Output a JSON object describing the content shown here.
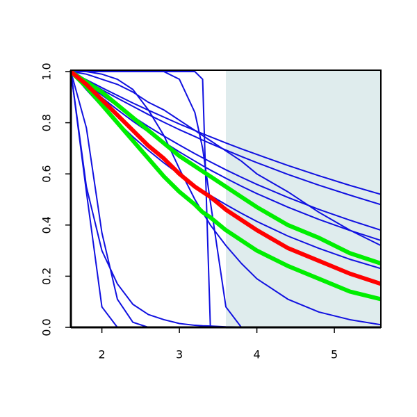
{
  "chart_data": {
    "type": "line",
    "x": [
      1.6,
      1.8,
      2.0,
      2.2,
      2.4,
      2.6,
      2.8,
      3.0,
      3.2,
      3.3,
      3.4,
      3.6,
      3.8,
      4.0,
      4.4,
      4.8,
      5.2,
      5.6
    ],
    "xlim": [
      1.6,
      5.6
    ],
    "xticks": [
      2,
      3,
      4,
      5
    ],
    "ylim": [
      0,
      1
    ],
    "yticks": [
      {
        "value": 0,
        "label": "0.0"
      },
      0.2,
      0.4,
      0.6,
      0.8,
      {
        "value": 1,
        "label": "1.0"
      }
    ],
    "shaded_region": {
      "x": [
        3.6,
        5.6
      ],
      "color": "#dfeced"
    },
    "series": [
      {
        "color": "#1010e0",
        "width": 2,
        "values": [
          1,
          0.968,
          0.937,
          0.907,
          0.877,
          0.849,
          0.822,
          0.795,
          0.77,
          0.757,
          0.745,
          0.721,
          0.698,
          0.676,
          0.633,
          0.593,
          0.555,
          0.52
        ]
      },
      {
        "color": "#1010e0",
        "width": 2,
        "values": [
          1,
          0.964,
          0.929,
          0.896,
          0.864,
          0.832,
          0.802,
          0.773,
          0.746,
          0.732,
          0.719,
          0.693,
          0.668,
          0.644,
          0.598,
          0.556,
          0.517,
          0.48
        ]
      },
      {
        "color": "#1010e0",
        "width": 2,
        "values": [
          1,
          0.953,
          0.908,
          0.865,
          0.824,
          0.785,
          0.748,
          0.713,
          0.679,
          0.663,
          0.647,
          0.616,
          0.587,
          0.559,
          0.508,
          0.461,
          0.419,
          0.38
        ]
      },
      {
        "color": "#1010e0",
        "width": 2,
        "values": [
          1,
          0.948,
          0.898,
          0.851,
          0.806,
          0.764,
          0.724,
          0.686,
          0.65,
          0.632,
          0.615,
          0.583,
          0.552,
          0.523,
          0.47,
          0.422,
          0.379,
          0.34
        ]
      },
      {
        "color": "#1010e0",
        "width": 2,
        "values": [
          1,
          0.929,
          0.863,
          0.802,
          0.745,
          0.692,
          0.643,
          0.598,
          0.555,
          0.535,
          0.516,
          0.48,
          0.446,
          0.414,
          0.357,
          0.309,
          0.266,
          0.23
        ]
      },
      {
        "color": "#1010e0",
        "width": 2,
        "values": [
          1,
          0.99,
          0.97,
          0.95,
          0.92,
          0.88,
          0.85,
          0.81,
          0.77,
          0.75,
          0.73,
          0.69,
          0.65,
          0.6,
          0.53,
          0.45,
          0.38,
          0.32
        ]
      },
      {
        "color": "#1010e0",
        "width": 2,
        "values": [
          1,
          0.53,
          0.08,
          0,
          0,
          0,
          0,
          0,
          0,
          0,
          0,
          0,
          0,
          0,
          0,
          0,
          0,
          0
        ]
      },
      {
        "color": "#1010e0",
        "width": 2,
        "values": [
          1,
          0.55,
          0.3,
          0.17,
          0.09,
          0.05,
          0.03,
          0.015,
          0.008,
          0.006,
          0.005,
          0.002,
          0.001,
          0,
          0,
          0,
          0,
          0
        ]
      },
      {
        "color": "#1010e0",
        "width": 2,
        "values": [
          1,
          0.78,
          0.37,
          0.11,
          0.02,
          0,
          0,
          0,
          0,
          0,
          0,
          0,
          0,
          0,
          0,
          0,
          0,
          0
        ]
      },
      {
        "color": "#1010e0",
        "width": 2,
        "values": [
          1,
          1,
          1,
          1,
          1,
          1,
          1,
          1,
          1,
          0.97,
          0,
          0,
          0,
          0,
          0,
          0,
          0,
          0
        ]
      },
      {
        "color": "#1010e0",
        "width": 2,
        "values": [
          1,
          1,
          1,
          1,
          1,
          1,
          1,
          0.97,
          0.84,
          0.7,
          0.49,
          0.08,
          0,
          0,
          0,
          0,
          0,
          0
        ]
      },
      {
        "color": "#1010e0",
        "width": 2,
        "values": [
          1,
          1,
          0.99,
          0.97,
          0.93,
          0.85,
          0.75,
          0.62,
          0.5,
          0.45,
          0.4,
          0.32,
          0.25,
          0.19,
          0.11,
          0.06,
          0.03,
          0.01
        ]
      },
      {
        "color": "#00ee00",
        "width": 6,
        "values": [
          1,
          0.96,
          0.92,
          0.87,
          0.82,
          0.77,
          0.72,
          0.67,
          0.63,
          0.61,
          0.59,
          0.55,
          0.51,
          0.47,
          0.4,
          0.35,
          0.29,
          0.25
        ]
      },
      {
        "color": "#00ee00",
        "width": 6,
        "values": [
          1,
          0.94,
          0.87,
          0.8,
          0.73,
          0.66,
          0.59,
          0.53,
          0.48,
          0.45,
          0.43,
          0.38,
          0.34,
          0.3,
          0.24,
          0.19,
          0.14,
          0.11
        ]
      },
      {
        "color": "#ff0000",
        "width": 6,
        "values": [
          1,
          0.95,
          0.89,
          0.83,
          0.77,
          0.71,
          0.66,
          0.6,
          0.55,
          0.53,
          0.51,
          0.46,
          0.42,
          0.38,
          0.31,
          0.26,
          0.21,
          0.17
        ]
      }
    ]
  }
}
